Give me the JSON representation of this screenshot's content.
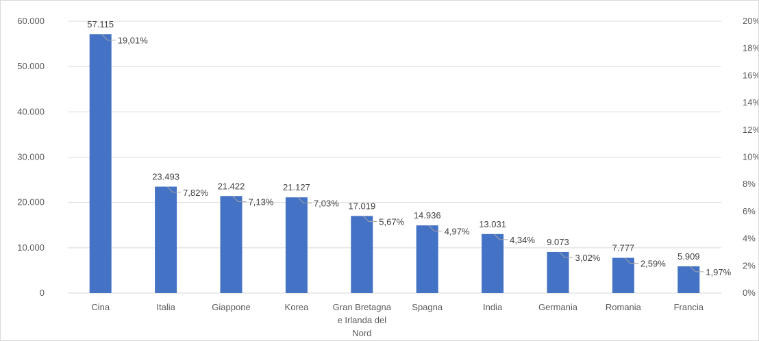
{
  "chart_data": {
    "type": "bar",
    "categories": [
      "Cina",
      "Italia",
      "Giappone",
      "Korea",
      "Gran Bretagna e Irlanda del Nord",
      "Spagna",
      "India",
      "Germania",
      "Romania",
      "Francia"
    ],
    "category_lines": [
      [
        "Cina"
      ],
      [
        "Italia"
      ],
      [
        "Giappone"
      ],
      [
        "Korea"
      ],
      [
        "Gran Bretagna",
        "e Irlanda del",
        "Nord"
      ],
      [
        "Spagna"
      ],
      [
        "India"
      ],
      [
        "Germania"
      ],
      [
        "Romania"
      ],
      [
        "Francia"
      ]
    ],
    "values": [
      57115,
      23493,
      21422,
      21127,
      17019,
      14936,
      13031,
      9073,
      7777,
      5909
    ],
    "value_labels": [
      "57.115",
      "23.493",
      "21.422",
      "21.127",
      "17.019",
      "14.936",
      "13.031",
      "9.073",
      "7.777",
      "5.909"
    ],
    "secondary_values": [
      19.01,
      7.82,
      7.13,
      7.03,
      5.67,
      4.97,
      4.34,
      3.02,
      2.59,
      1.97
    ],
    "secondary_labels": [
      "19,01%",
      "7,82%",
      "7,13%",
      "7,03%",
      "5,67%",
      "4,97%",
      "4,34%",
      "3,02%",
      "2,59%",
      "1,97%"
    ],
    "ylim": [
      0,
      60000
    ],
    "yticks": [
      0,
      10000,
      20000,
      30000,
      40000,
      50000,
      60000
    ],
    "ytick_labels": [
      "0",
      "10.000",
      "20.000",
      "30.000",
      "40.000",
      "50.000",
      "60.000"
    ],
    "y2lim": [
      0,
      20
    ],
    "y2ticks": [
      0,
      2,
      4,
      6,
      8,
      10,
      12,
      14,
      16,
      18,
      20
    ],
    "y2tick_labels": [
      "0%",
      "2%",
      "4%",
      "6%",
      "8%",
      "10%",
      "12%",
      "14%",
      "16%",
      "18%",
      "20%"
    ],
    "grid": true,
    "colors": {
      "bar": "#4472C4",
      "grid": "#d9d9d9",
      "connector": "#a6a6a6"
    }
  }
}
